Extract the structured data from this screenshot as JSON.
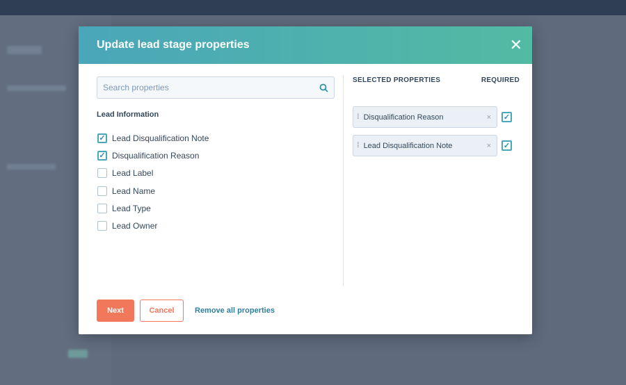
{
  "modal": {
    "title": "Update lead stage properties",
    "search_placeholder": "Search properties",
    "group_label": "Lead Information",
    "options": [
      {
        "label": "Lead Disqualification Note",
        "checked": true
      },
      {
        "label": "Disqualification Reason",
        "checked": true
      },
      {
        "label": "Lead Label",
        "checked": false
      },
      {
        "label": "Lead Name",
        "checked": false
      },
      {
        "label": "Lead Type",
        "checked": false
      },
      {
        "label": "Lead Owner",
        "checked": false
      }
    ],
    "selected_header": "SELECTED PROPERTIES",
    "required_header": "REQUIRED",
    "selected": [
      {
        "label": "Disqualification Reason",
        "required": true
      },
      {
        "label": "Lead Disqualification Note",
        "required": true
      }
    ],
    "next_label": "Next",
    "cancel_label": "Cancel",
    "remove_all_label": "Remove all properties"
  },
  "colors": {
    "accent": "#4aa6b9",
    "primary_button": "#f2785c",
    "header_gradient_end": "#52bba3"
  }
}
